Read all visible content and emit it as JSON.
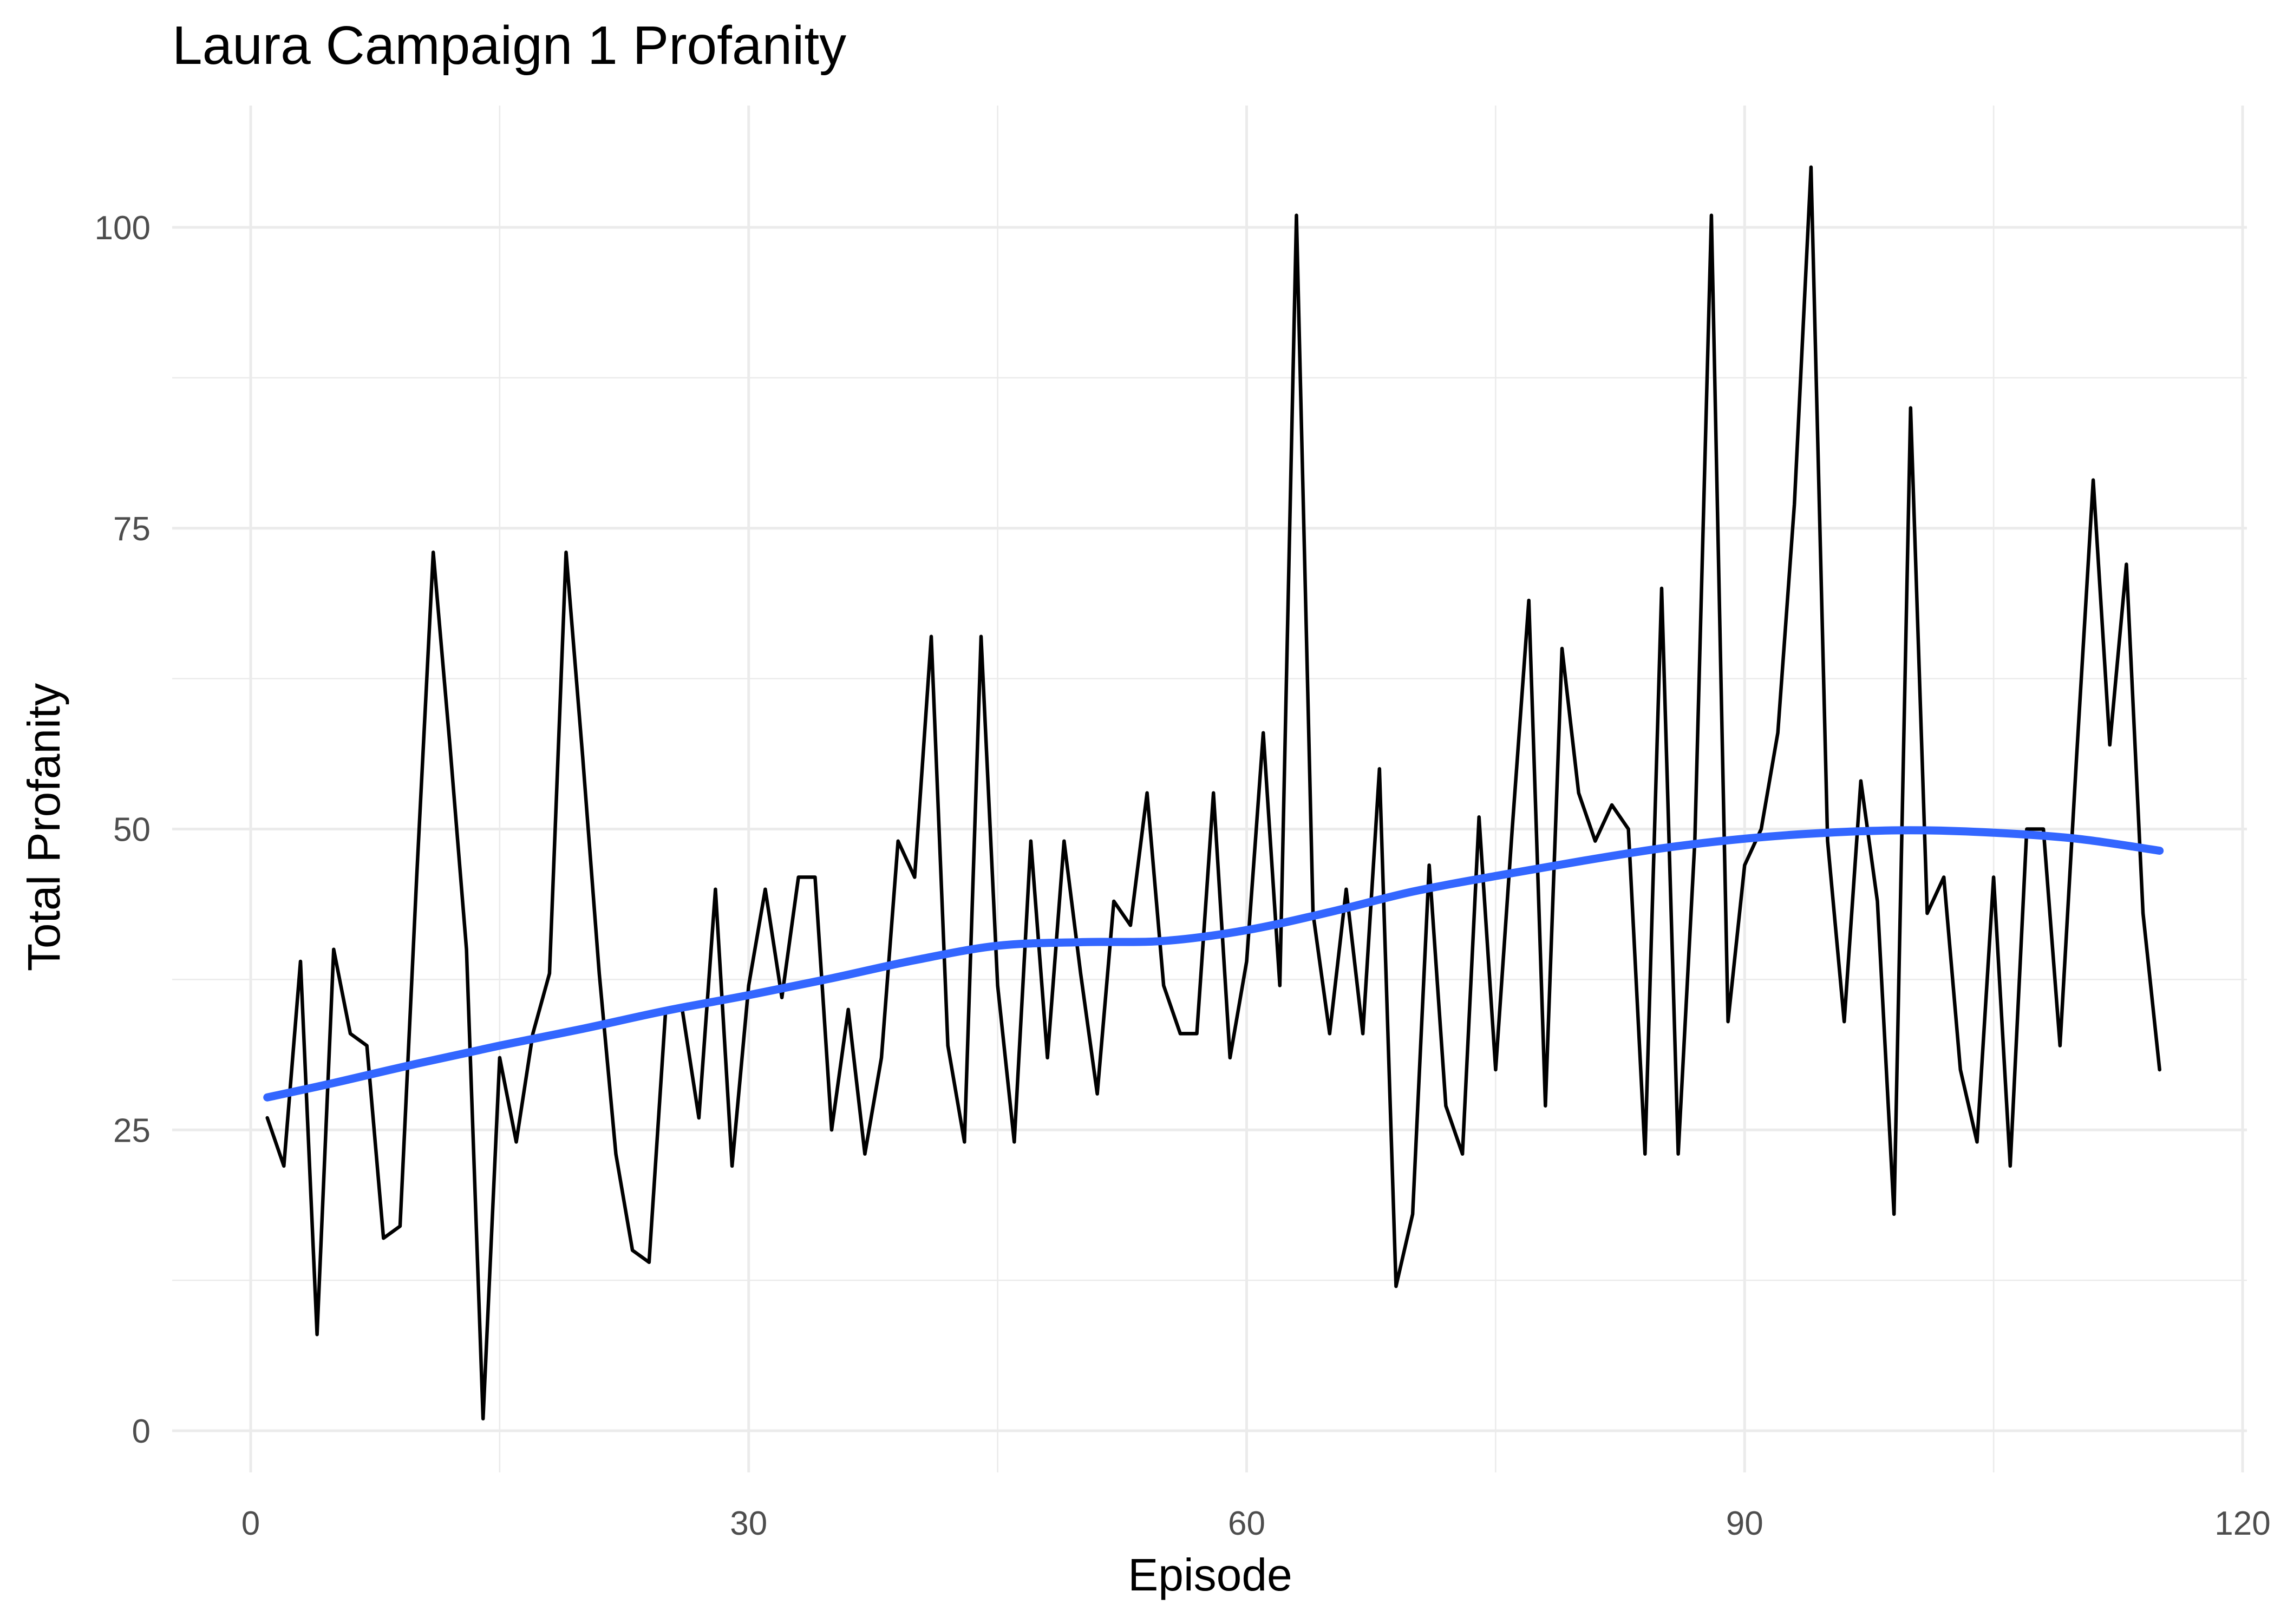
{
  "chart_data": {
    "type": "line",
    "title": "Laura Campaign 1 Profanity",
    "xlabel": "Episode",
    "ylabel": "Total Profanity",
    "xlim": [
      -4,
      120
    ],
    "ylim": [
      -3,
      106
    ],
    "x_ticks": [
      0,
      30,
      60,
      90,
      120
    ],
    "y_ticks": [
      0,
      25,
      50,
      75,
      100
    ],
    "x_tick_labels": [
      "0",
      "30",
      "60",
      "90",
      "120"
    ],
    "y_tick_labels": [
      "0",
      "25",
      "50",
      "75",
      "100"
    ],
    "grid": true,
    "legend": "none",
    "colors": {
      "data_line": "#000000",
      "smooth_line": "#3366ff",
      "grid": "#ebebeb",
      "background": "#ffffff"
    },
    "series": [
      {
        "x": [
          1,
          2,
          3,
          4,
          5,
          6,
          7,
          8,
          9,
          10,
          11,
          12,
          13,
          14,
          15,
          16,
          17,
          18,
          19,
          20,
          21,
          22,
          23,
          24,
          25,
          26,
          27,
          28,
          29,
          30,
          31,
          32,
          33,
          34,
          35,
          36,
          37,
          38,
          39,
          40,
          41,
          42,
          43,
          44,
          45,
          46,
          47,
          48,
          49,
          50,
          51,
          52,
          53,
          54,
          55,
          56,
          57,
          58,
          59,
          60,
          61,
          62,
          63,
          64,
          65,
          66,
          67,
          68,
          69,
          70,
          71,
          72,
          73,
          74,
          75,
          76,
          77,
          78,
          79,
          80,
          81,
          82,
          83,
          84,
          85,
          86,
          87,
          88,
          89,
          90,
          91,
          92,
          93,
          94,
          95,
          96,
          97,
          98,
          99,
          100,
          101,
          102,
          103,
          104,
          105,
          106,
          107,
          108,
          109,
          110,
          111,
          112,
          113,
          114,
          115
        ],
        "values": [
          26,
          22,
          39,
          8,
          40,
          33,
          32,
          16,
          17,
          46,
          73,
          57,
          40,
          1,
          31,
          24,
          33,
          38,
          73,
          56,
          38,
          23,
          15,
          14,
          35,
          35,
          26,
          45,
          22,
          37,
          45,
          36,
          46,
          46,
          25,
          35,
          23,
          31,
          49,
          46,
          66,
          32,
          24,
          66,
          37,
          24,
          49,
          31,
          49,
          38,
          28,
          44,
          42,
          53,
          37,
          33,
          33,
          53,
          31,
          39,
          58,
          37,
          101,
          43,
          33,
          45,
          33,
          55,
          12,
          18,
          47,
          27,
          23,
          51,
          30,
          50,
          69,
          27,
          65,
          53,
          49,
          52,
          50,
          23,
          70,
          23,
          49,
          101,
          34,
          47,
          50,
          58,
          77,
          105,
          49,
          34,
          54,
          44,
          18,
          85,
          43,
          46,
          30,
          24,
          46,
          22,
          50,
          50,
          32,
          56,
          79,
          57,
          72,
          43,
          30
        ]
      },
      {
        "x": [
          1,
          5,
          10,
          15,
          20,
          25,
          30,
          35,
          40,
          45,
          50,
          55,
          60,
          65,
          70,
          75,
          80,
          85,
          90,
          95,
          100,
          105,
          110,
          115
        ],
        "values": [
          27.7,
          28.9,
          30.5,
          32.0,
          33.4,
          34.9,
          36.2,
          37.6,
          39.1,
          40.3,
          40.6,
          40.7,
          41.6,
          43.1,
          44.8,
          46.1,
          47.3,
          48.4,
          49.2,
          49.7,
          49.9,
          49.7,
          49.2,
          48.2
        ]
      }
    ]
  }
}
